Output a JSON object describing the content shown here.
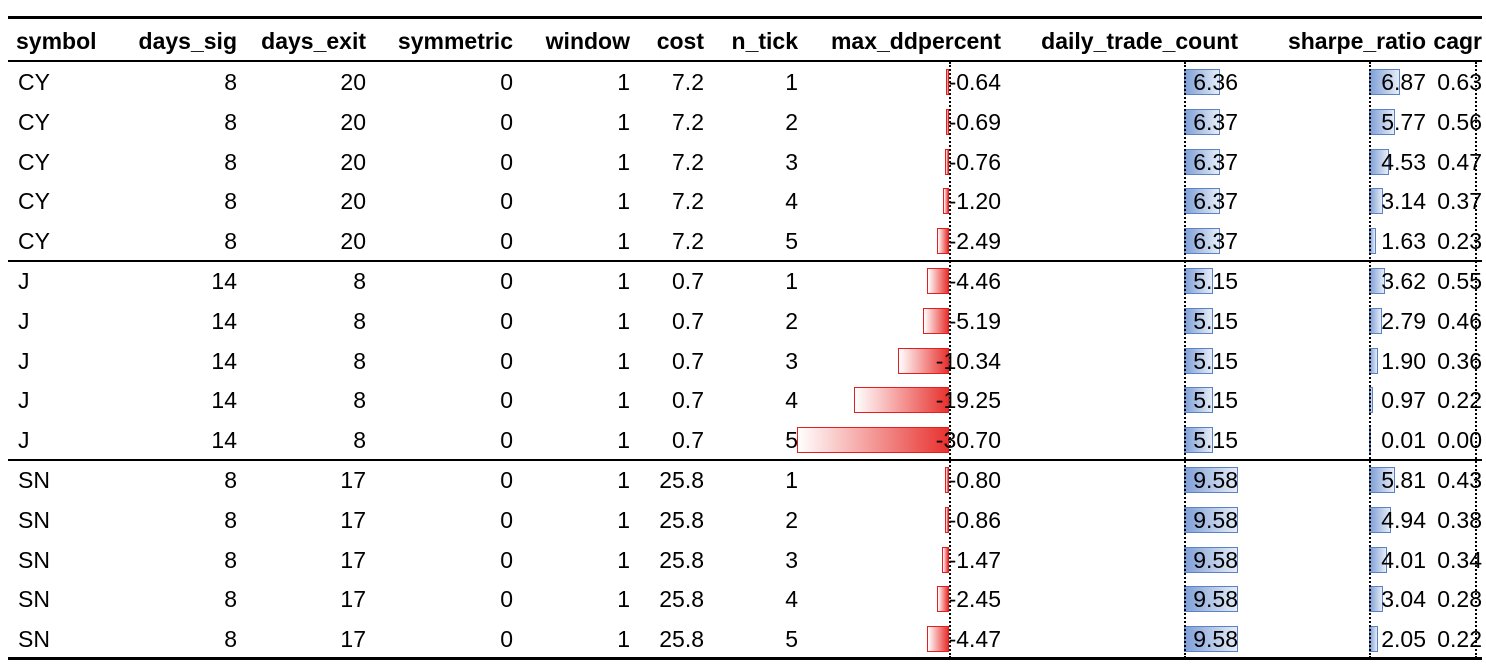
{
  "table": {
    "headers": [
      "symbol",
      "days_sig",
      "days_exit",
      "symmetric",
      "window",
      "cost",
      "n_tick",
      "max_ddpercent",
      "daily_trade_count",
      "sharpe_ratio",
      "cagr"
    ],
    "rows": [
      [
        "CY",
        "8",
        "20",
        "0",
        "1",
        "7.2",
        "1",
        "-0.64",
        "6.36",
        "6.87",
        "0.63"
      ],
      [
        "CY",
        "8",
        "20",
        "0",
        "1",
        "7.2",
        "2",
        "-0.69",
        "6.37",
        "5.77",
        "0.56"
      ],
      [
        "CY",
        "8",
        "20",
        "0",
        "1",
        "7.2",
        "3",
        "-0.76",
        "6.37",
        "4.53",
        "0.47"
      ],
      [
        "CY",
        "8",
        "20",
        "0",
        "1",
        "7.2",
        "4",
        "-1.20",
        "6.37",
        "3.14",
        "0.37"
      ],
      [
        "CY",
        "8",
        "20",
        "0",
        "1",
        "7.2",
        "5",
        "-2.49",
        "6.37",
        "1.63",
        "0.23"
      ],
      [
        "J",
        "14",
        "8",
        "0",
        "1",
        "0.7",
        "1",
        "-4.46",
        "5.15",
        "3.62",
        "0.55"
      ],
      [
        "J",
        "14",
        "8",
        "0",
        "1",
        "0.7",
        "2",
        "-5.19",
        "5.15",
        "2.79",
        "0.46"
      ],
      [
        "J",
        "14",
        "8",
        "0",
        "1",
        "0.7",
        "3",
        "-10.34",
        "5.15",
        "1.90",
        "0.36"
      ],
      [
        "J",
        "14",
        "8",
        "0",
        "1",
        "0.7",
        "4",
        "-19.25",
        "5.15",
        "0.97",
        "0.22"
      ],
      [
        "J",
        "14",
        "8",
        "0",
        "1",
        "0.7",
        "5",
        "-30.70",
        "5.15",
        "0.01",
        "0.00"
      ],
      [
        "SN",
        "8",
        "17",
        "0",
        "1",
        "25.8",
        "1",
        "-0.80",
        "9.58",
        "5.81",
        "0.43"
      ],
      [
        "SN",
        "8",
        "17",
        "0",
        "1",
        "25.8",
        "2",
        "-0.86",
        "9.58",
        "4.94",
        "0.38"
      ],
      [
        "SN",
        "8",
        "17",
        "0",
        "1",
        "25.8",
        "3",
        "-1.47",
        "9.58",
        "4.01",
        "0.34"
      ],
      [
        "SN",
        "8",
        "17",
        "0",
        "1",
        "25.8",
        "4",
        "-2.45",
        "9.58",
        "3.04",
        "0.28"
      ],
      [
        "SN",
        "8",
        "17",
        "0",
        "1",
        "25.8",
        "5",
        "-4.47",
        "9.58",
        "2.05",
        "0.22"
      ]
    ]
  },
  "colors": {
    "negative_bar": "#e02020",
    "positive_bar": "#5a82c4",
    "rules": "#000000"
  }
}
